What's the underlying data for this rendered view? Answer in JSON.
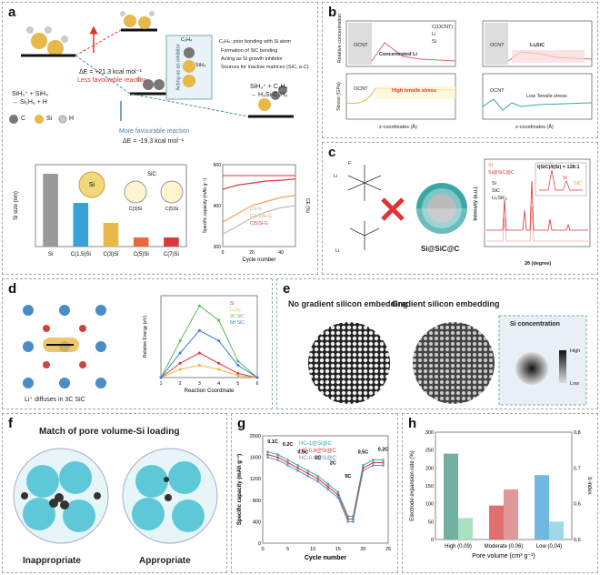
{
  "panels": {
    "a": {
      "label": "a",
      "energy_up": "ΔE = +21.3 kcal mol⁻¹",
      "less_favourable": "Less favourable reaction",
      "energy_down": "ΔE = -19.3 kcal mol⁻¹",
      "more_favourable": "More favourable reaction",
      "reactants": "SiH₃⁺ + SiH₄",
      "product_si2h6": "→ Si₂H₆ + H",
      "product_right": "SiH₃⁺ + C₂H₄",
      "product_right2": "→ H₃Si-C₂H₄",
      "legend_c": "C",
      "legend_si": "Si",
      "legend_h": "H",
      "inhibitor_box": "Acting as an inhibitor",
      "c2h4": "C₂H₄",
      "sih4": "SiH₄",
      "bullets_title": "C₂H₄: prior bonding with Si atom",
      "bullets": [
        "Formation of SiC bonding",
        "Acting as Si growth inhibitor",
        "Sources for inactive matrices (SiC, a-C)"
      ],
      "bar_ylabel": "Si size (nm)",
      "bar_categories": [
        "Si",
        "C(1.5)Si",
        "C(3)Si",
        "C(5)Si",
        "C(7)Si"
      ],
      "diagram_labels": [
        "Si",
        "SiC",
        "C(3)Si",
        "C(5)Si"
      ],
      "cycle_ylabel": "Specific capacity (mAh g⁻¹)",
      "cycle_y2label": "CE (%)",
      "cycle_xlabel": "Cycle number",
      "cycle_legend": [
        "pSi-G",
        "C(1.5)Si-G",
        "C(5)Si-G"
      ]
    },
    "b": {
      "label": "b",
      "ylabel_top": "Relative concentration",
      "ylabel_bottom": "Stress (GPa)",
      "xlabel": "z-coordinates (Å)",
      "left_ocnt": "OCNT",
      "left_note": "Concentrated Li",
      "left_stress": "High tensile stress",
      "right_ocnt": "OCNT",
      "right_note": "LiₓSiC",
      "right_stress": "Low Tensile stress",
      "legend": [
        "C(OCNT)",
        "Li",
        "Si"
      ]
    },
    "c": {
      "label": "c",
      "sample": "Si@SiC@C",
      "xrd_xlabel": "2θ (degree)",
      "xrd_ylabel": "Intensity (a.u.)",
      "xrd_legend": [
        "Si",
        "Si@SiC@C"
      ],
      "peak_legend": [
        "Si",
        "SiC",
        "Li₂SiF₆"
      ],
      "inset_label": "I(SiC)/I(Si) = 128:1",
      "inset_tags": [
        "Si",
        "SiC"
      ],
      "f_label": "F",
      "li_label": "Li"
    },
    "d": {
      "label": "d",
      "caption": "Li⁺ diffuses in 3C SiC",
      "ylabel": "Relative Energy (eV)",
      "xlabel": "Reaction Coordinate",
      "legend": [
        "Si",
        "LiₓSiᵧ",
        "3C SiC",
        "6H SiC"
      ]
    },
    "e": {
      "label": "e",
      "left_title": "No gradient silicon embedding",
      "right_title": "Gradient silicon embedding",
      "inset_title": "Si concentration",
      "high": "High",
      "low": "Low"
    },
    "f": {
      "label": "f",
      "title": "Match of pore volume-Si loading",
      "left": "Inappropriate",
      "right": "Appropriate"
    },
    "g": {
      "label": "g",
      "ylabel": "Specific capacity (mAh g⁻¹)",
      "xlabel": "Cycle number",
      "legend": [
        "HC-1@Si@C",
        "HC-0.8@Si@C",
        "HC-0.6@Si@C"
      ],
      "rates": [
        "0.1C",
        "0.2C",
        "0.5C",
        "1C",
        "2C",
        "5C",
        "0.5C",
        "0.2C"
      ]
    },
    "h": {
      "label": "h",
      "ylabel": "Electrode expansion rate (%)",
      "y2label": "b index",
      "xlabel": "Pore volume (cm³ g⁻¹)",
      "categories": [
        "High (0.09)",
        "Moderate (0.06)",
        "Low (0.04)"
      ]
    }
  },
  "colors": {
    "si": "#e8b84a",
    "c": "#7a7a7a",
    "teal": "#3aa6a6",
    "red": "#d93a3a",
    "panel_border": "#9aa"
  },
  "chart_data": [
    {
      "id": "a-bar",
      "type": "bar",
      "title": "",
      "ylabel": "Si size (nm)",
      "categories": [
        "Si",
        "C(1.5)Si",
        "C(3)Si",
        "C(5)Si",
        "C(7)Si"
      ],
      "values": [
        40,
        24,
        13,
        5,
        5
      ],
      "ylim": [
        0,
        45
      ]
    },
    {
      "id": "a-cycle",
      "type": "line",
      "xlabel": "Cycle number",
      "ylabel": "Specific capacity (mAh g⁻¹)",
      "xlim": [
        0,
        50
      ],
      "ylim": [
        300,
        500
      ],
      "x": [
        0,
        10,
        20,
        30,
        40,
        50
      ],
      "series": [
        {
          "name": "pSi-G",
          "values": [
            330,
            350,
            370,
            385,
            395,
            400
          ]
        },
        {
          "name": "C(1.5)Si-G",
          "values": [
            360,
            380,
            400,
            410,
            420,
            425
          ]
        },
        {
          "name": "C(5)Si-G",
          "values": [
            440,
            450,
            455,
            460,
            462,
            465
          ]
        }
      ]
    },
    {
      "id": "d-energy",
      "type": "line",
      "xlabel": "Reaction Coordinate",
      "ylabel": "Relative Energy (eV)",
      "xlim": [
        1,
        6
      ],
      "ylim": [
        0,
        2.0
      ],
      "x": [
        1,
        2,
        3,
        4,
        5,
        6
      ],
      "series": [
        {
          "name": "Si",
          "values": [
            0,
            0.35,
            0.6,
            0.35,
            0.1,
            0
          ]
        },
        {
          "name": "LiₓSiᵧ",
          "values": [
            0,
            0.2,
            0.3,
            0.2,
            0.05,
            0
          ]
        },
        {
          "name": "3C SiC",
          "values": [
            0,
            0.9,
            1.75,
            1.4,
            0.4,
            0
          ]
        },
        {
          "name": "6H SiC",
          "values": [
            0,
            0.6,
            1.15,
            0.9,
            0.3,
            0
          ]
        }
      ]
    },
    {
      "id": "g-rate",
      "type": "line",
      "xlabel": "Cycle number",
      "ylabel": "Specific capacity (mAh g⁻¹)",
      "xlim": [
        0,
        25
      ],
      "ylim": [
        0,
        2000
      ],
      "x": [
        1,
        3,
        5,
        7,
        9,
        11,
        13,
        15,
        17,
        18,
        20,
        22,
        24
      ],
      "series": [
        {
          "name": "HC-1@Si@C",
          "values": [
            1700,
            1650,
            1550,
            1450,
            1350,
            1250,
            1100,
            950,
            500,
            500,
            1450,
            1550,
            1550
          ]
        },
        {
          "name": "HC-0.8@Si@C",
          "values": [
            1650,
            1600,
            1500,
            1400,
            1300,
            1200,
            1050,
            900,
            450,
            450,
            1400,
            1500,
            1500
          ]
        },
        {
          "name": "HC-0.6@Si@C",
          "values": [
            1600,
            1550,
            1450,
            1350,
            1250,
            1150,
            1000,
            850,
            400,
            400,
            1350,
            1450,
            1450
          ]
        }
      ]
    },
    {
      "id": "h-bar",
      "type": "bar",
      "xlabel": "Pore volume (cm³ g⁻¹)",
      "ylabel": "Electrode expansion rate (%)",
      "categories": [
        "High (0.09)",
        "Moderate (0.06)",
        "Low (0.04)"
      ],
      "series": [
        {
          "name": "Electrode expansion rate (%)",
          "values": [
            240,
            95,
            180
          ]
        },
        {
          "name": "b index",
          "values": [
            0.56,
            0.64,
            0.55
          ]
        }
      ],
      "ylim": [
        0,
        300
      ],
      "y2lim": [
        0.5,
        0.8
      ]
    }
  ]
}
